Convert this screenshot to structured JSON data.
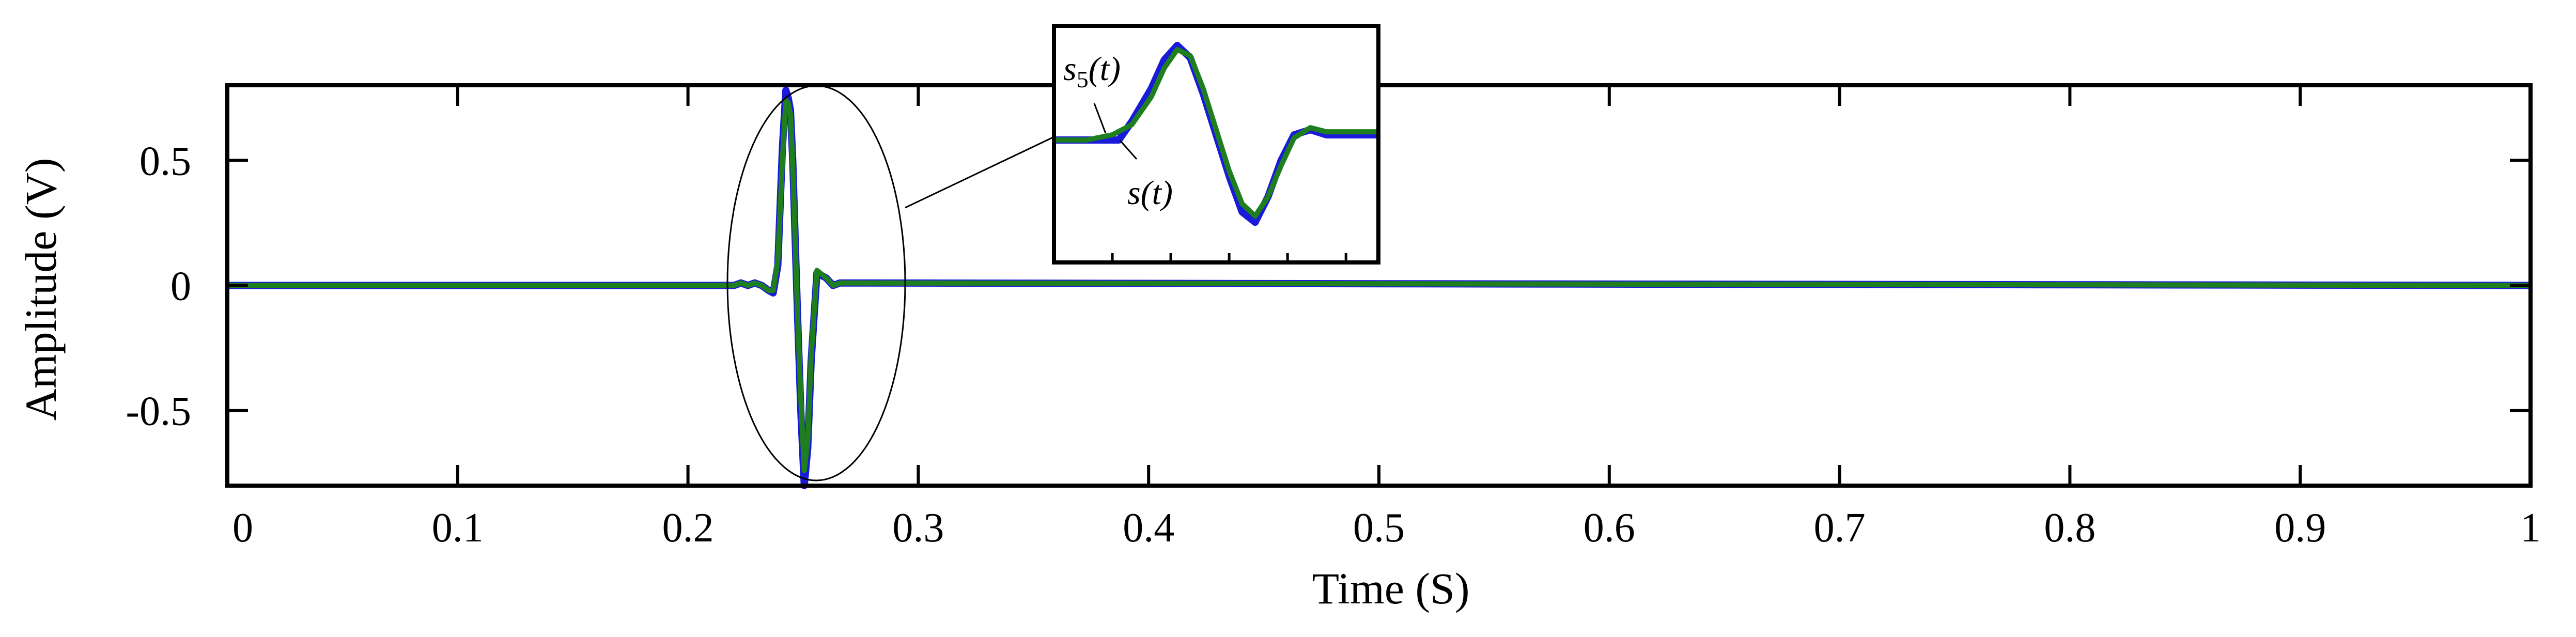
{
  "chart_data": {
    "type": "line",
    "title": "",
    "xlabel": "Time (S)",
    "ylabel": "Amplitude (V)",
    "xlim": [
      0,
      1
    ],
    "ylim": [
      -0.8,
      0.8
    ],
    "xticks": [
      0,
      0.1,
      0.2,
      0.3,
      0.4,
      0.5,
      0.6,
      0.7,
      0.8,
      0.9,
      1
    ],
    "xtick_labels": [
      "0",
      "0.1",
      "0.2",
      "0.3",
      "0.4",
      "0.5",
      "0.6",
      "0.7",
      "0.8",
      "0.9",
      "1"
    ],
    "yticks": [
      0.5,
      0,
      -0.5
    ],
    "ytick_labels": [
      "0.5",
      "0",
      "-0.5"
    ],
    "grid": false,
    "legend": "none",
    "series": [
      {
        "name": "s(t)",
        "color": "#1a1adb",
        "x": [
          0,
          0.22,
          0.223,
          0.226,
          0.229,
          0.232,
          0.235,
          0.237,
          0.239,
          0.241,
          0.2425,
          0.2435,
          0.2445,
          0.2455,
          0.2465,
          0.2475,
          0.249,
          0.2505,
          0.252,
          0.2535,
          0.256,
          0.26,
          0.263,
          0.266,
          1
        ],
        "y": [
          0,
          0,
          0.01,
          0.0,
          0.01,
          0.0,
          -0.02,
          -0.03,
          0.08,
          0.55,
          0.78,
          0.75,
          0.7,
          0.5,
          0.2,
          -0.1,
          -0.5,
          -0.8,
          -0.65,
          -0.3,
          0.05,
          0.03,
          0.0,
          0.01,
          0
        ]
      },
      {
        "name": "s5(t)",
        "color": "#1f7f1f",
        "x": [
          0,
          0.22,
          0.223,
          0.226,
          0.229,
          0.232,
          0.235,
          0.237,
          0.239,
          0.241,
          0.2425,
          0.2435,
          0.2445,
          0.2455,
          0.2465,
          0.2475,
          0.249,
          0.2505,
          0.252,
          0.2535,
          0.256,
          0.26,
          0.263,
          0.266,
          1
        ],
        "y": [
          0,
          0,
          0.01,
          0.0,
          0.01,
          0.0,
          -0.02,
          -0.02,
          0.1,
          0.5,
          0.74,
          0.73,
          0.68,
          0.48,
          0.2,
          -0.1,
          -0.45,
          -0.74,
          -0.62,
          -0.28,
          0.06,
          0.03,
          0.0,
          0.01,
          0
        ]
      }
    ],
    "annotations": [
      "s5(t)",
      "s(t)"
    ],
    "inset": {
      "series": [
        {
          "name": "s(t)",
          "color": "#1a1adb",
          "x": [
            0,
            0.18,
            0.2,
            0.24,
            0.3,
            0.34,
            0.38,
            0.42,
            0.46,
            0.5,
            0.54,
            0.58,
            0.62,
            0.66,
            0.7,
            0.74,
            0.79,
            0.84,
            0.9,
            1
          ],
          "y": [
            0,
            0,
            0,
            0.18,
            0.5,
            0.78,
            0.92,
            0.8,
            0.45,
            0.05,
            -0.35,
            -0.7,
            -0.8,
            -0.55,
            -0.2,
            0.05,
            0.1,
            0.05,
            0.05,
            0.05
          ]
        },
        {
          "name": "s5(t)",
          "color": "#1f7f1f",
          "x": [
            0,
            0.1,
            0.18,
            0.24,
            0.3,
            0.34,
            0.38,
            0.42,
            0.46,
            0.5,
            0.54,
            0.58,
            0.62,
            0.66,
            0.7,
            0.74,
            0.79,
            0.84,
            0.9,
            1
          ],
          "y": [
            0,
            0,
            0.05,
            0.15,
            0.42,
            0.7,
            0.88,
            0.82,
            0.5,
            0.1,
            -0.3,
            -0.62,
            -0.74,
            -0.55,
            -0.25,
            0.02,
            0.12,
            0.08,
            0.08,
            0.08
          ]
        }
      ]
    }
  }
}
